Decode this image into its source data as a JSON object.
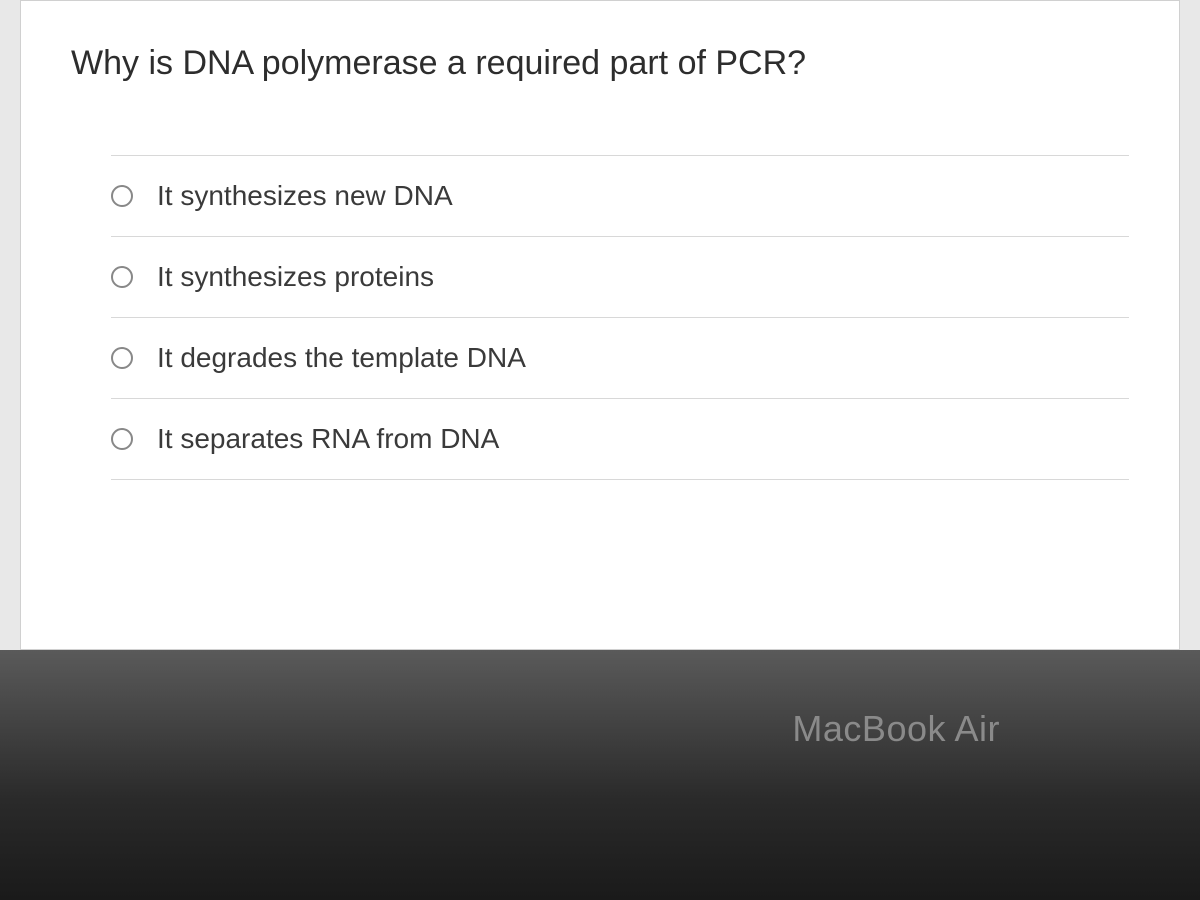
{
  "question": {
    "text": "Why is DNA polymerase a required part of PCR?",
    "font_size": 34,
    "color": "#2d2d2d"
  },
  "options": [
    {
      "label": "It synthesizes new DNA",
      "selected": false
    },
    {
      "label": "It synthesizes proteins",
      "selected": false
    },
    {
      "label": "It degrades the template DNA",
      "selected": false
    },
    {
      "label": "It separates RNA from DNA",
      "selected": false
    }
  ],
  "styling": {
    "background_color": "#ffffff",
    "border_color": "#d0d0d0",
    "divider_color": "#d8d8d8",
    "radio_border_color": "#888888",
    "option_font_size": 28,
    "option_color": "#3a3a3a"
  },
  "device": {
    "label": "MacBook Air",
    "label_color": "#8a8a8a",
    "bezel_color": "#2a2a2a"
  }
}
